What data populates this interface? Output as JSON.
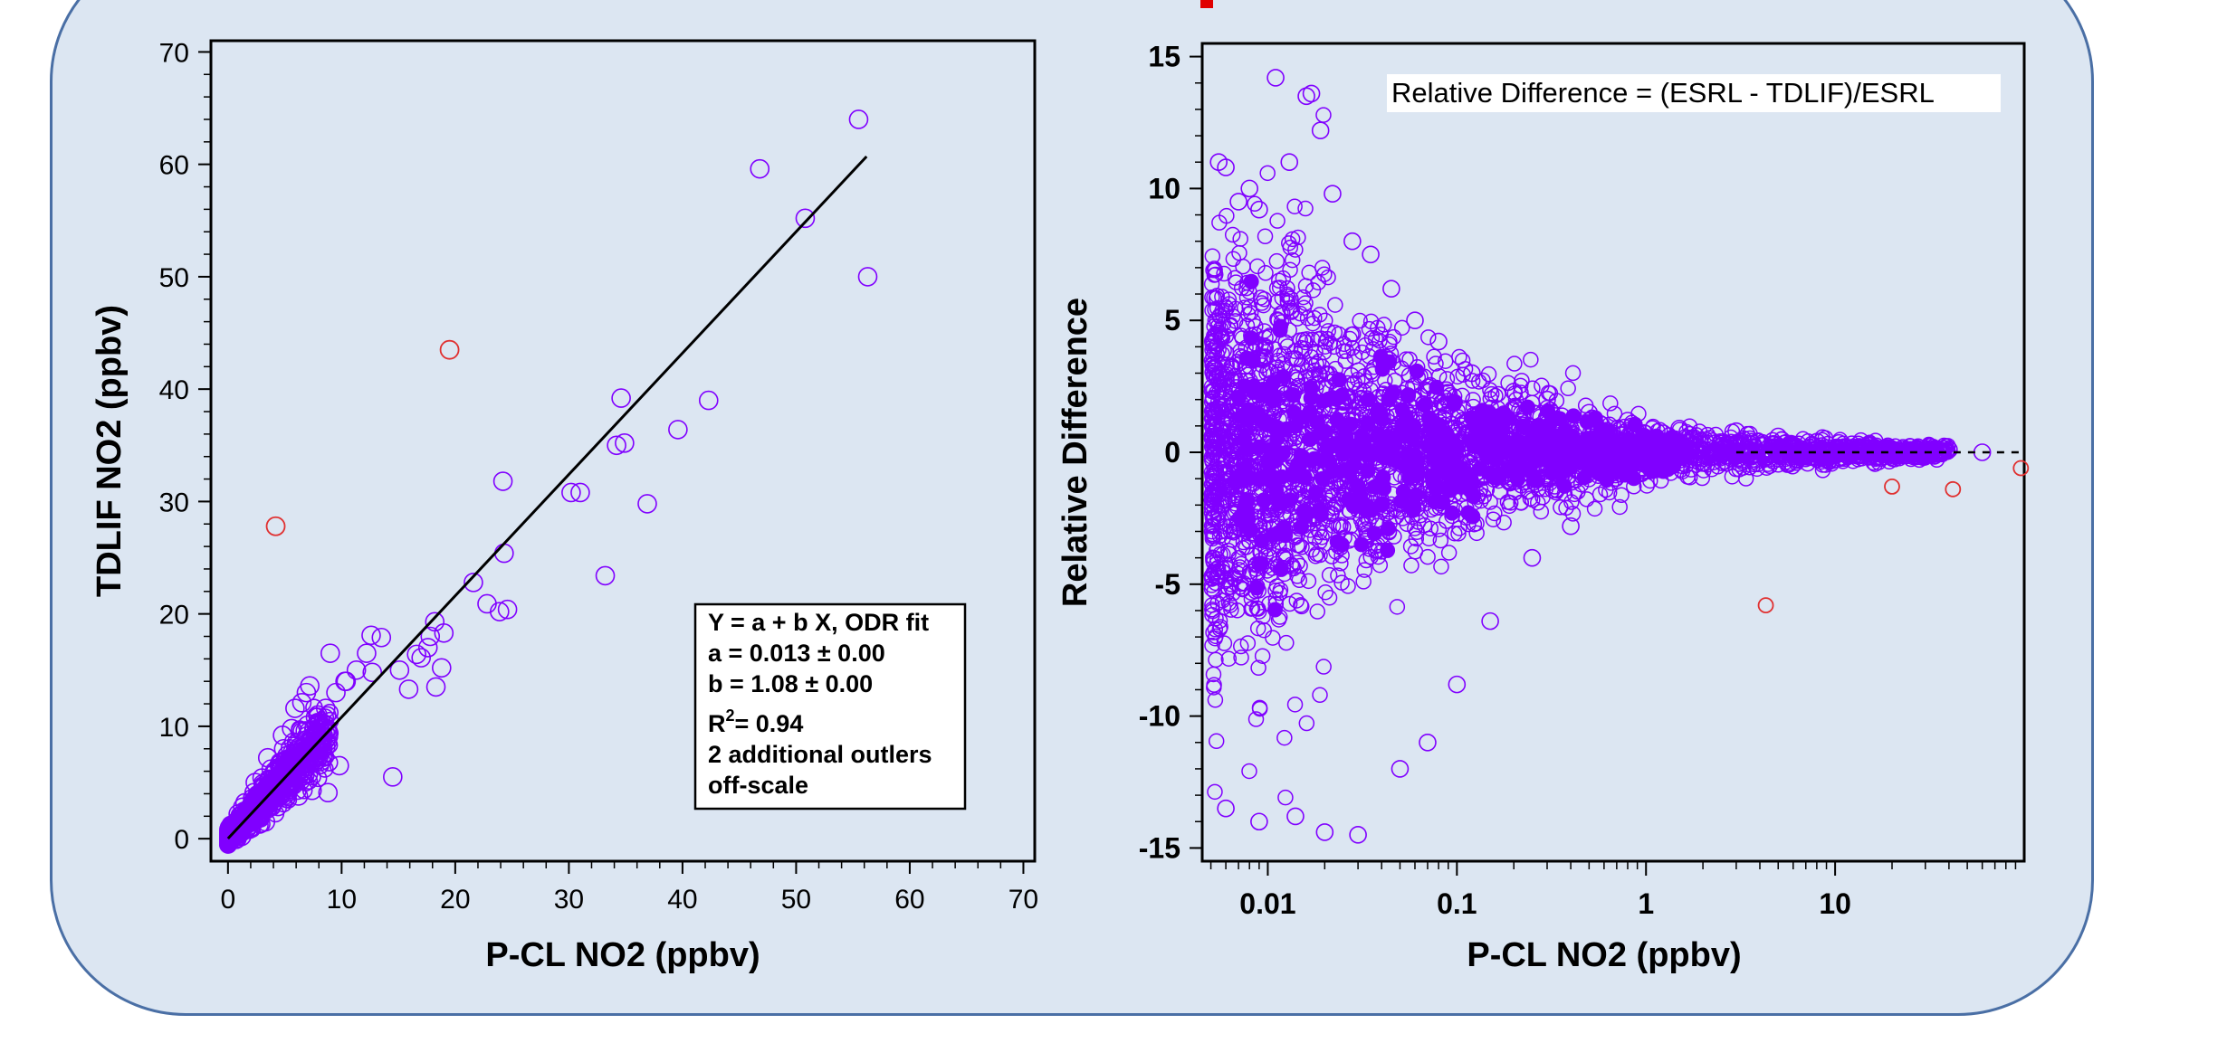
{
  "colors": {
    "panel_bg": "#dce6f2",
    "panel_border": "#4a6fa5",
    "marker": "#8000ff",
    "outlier": "#e03030",
    "fit_line": "#000000"
  },
  "chart_data": [
    {
      "type": "scatter",
      "xlabel": "P-CL NO2  (ppbv)",
      "ylabel": "TDLIF NO2  (ppbv)",
      "xlim": [
        -1.5,
        71
      ],
      "ylim": [
        -2,
        71
      ],
      "xticks": [
        0,
        10,
        20,
        30,
        40,
        50,
        60,
        70
      ],
      "yticks": [
        0,
        10,
        20,
        30,
        40,
        50,
        60,
        70
      ],
      "xtick_labels": [
        "0",
        "10",
        "20",
        "30",
        "40",
        "50",
        "60",
        "70"
      ],
      "ytick_labels": [
        "0",
        "10",
        "20",
        "30",
        "40",
        "50",
        "60",
        "70"
      ],
      "fit_line": {
        "x": [
          0,
          56.2
        ],
        "y": [
          0.013,
          60.7
        ]
      },
      "annotation": {
        "lines": [
          "Y = a + b X, ODR fit",
          "a = 0.013 ± 0.00",
          "b = 1.08 ± 0.00",
          "R",
          "=  0.94",
          "2 additional outlers",
          "off-scale"
        ],
        "r2_prefix": "R",
        "r2_sup": "2",
        "r2_rest": "=  0.94"
      },
      "outliers": [
        [
          4.2,
          27.8
        ],
        [
          19.5,
          43.5
        ]
      ],
      "series": [
        {
          "x": [
            55.5,
            46.8,
            50.8,
            56.3,
            34.6,
            42.3,
            39.6,
            24.2,
            36.9,
            30.2,
            31.0,
            34.2,
            34.9,
            33.2,
            24.3,
            21.6,
            23.9,
            24.6,
            22.8,
            19.0,
            17.8,
            18.2,
            17.6,
            18.8,
            18.3,
            16.6,
            17.0,
            15.9,
            15.1,
            14.5,
            13.5,
            12.6,
            12.2,
            11.3,
            10.3,
            9.5,
            8.6,
            7.9,
            7.0,
            6.4,
            5.8,
            5.2,
            4.6,
            4.1,
            3.6,
            3.1,
            2.6,
            2.2,
            1.8,
            1.4,
            1.0,
            0.7,
            0.4,
            0.2,
            9.0,
            10.4,
            12.7,
            8.8,
            6.2,
            5.1,
            4.4,
            3.3,
            2.0,
            1.2,
            0.5,
            0.1,
            8.2,
            7.4,
            6.8,
            5.5,
            3.9,
            2.9,
            1.6,
            0.8,
            0.3,
            9.8,
            8.1,
            6.5,
            5.9,
            4.8,
            3.5,
            2.4,
            1.3,
            0.6,
            7.7,
            6.0,
            4.3,
            2.8,
            1.9,
            1.1,
            0.2,
            0.9,
            1.5,
            2.3,
            3.0,
            3.8,
            4.9,
            5.6,
            6.9,
            7.2
          ],
          "y": [
            64.0,
            59.6,
            55.2,
            50.0,
            39.2,
            39.0,
            36.4,
            31.8,
            29.8,
            30.8,
            30.8,
            35.0,
            35.2,
            23.4,
            25.4,
            22.8,
            20.2,
            20.4,
            20.9,
            18.3,
            18.0,
            19.3,
            17.0,
            15.2,
            13.5,
            16.4,
            16.1,
            13.3,
            15.0,
            5.5,
            17.9,
            18.1,
            16.5,
            15.0,
            14.0,
            13.0,
            11.6,
            11.0,
            10.1,
            9.6,
            8.6,
            7.4,
            6.8,
            6.0,
            5.3,
            4.5,
            3.9,
            3.1,
            2.6,
            2.0,
            1.4,
            0.9,
            0.5,
            0.2,
            16.5,
            14.0,
            14.8,
            4.1,
            3.8,
            3.6,
            4.2,
            1.5,
            1.0,
            0.2,
            0.1,
            0.0,
            6.9,
            4.3,
            9.6,
            5.8,
            3.0,
            2.1,
            0.8,
            0.5,
            0.2,
            6.5,
            8.8,
            12.1,
            11.6,
            9.2,
            7.2,
            5.0,
            2.8,
            1.3,
            10.8,
            7.2,
            4.0,
            1.9,
            1.2,
            0.6,
            0.9,
            2.2,
            3.2,
            4.1,
            5.4,
            6.2,
            8.0,
            9.8,
            13.0,
            13.6
          ]
        }
      ]
    },
    {
      "type": "scatter",
      "xlabel": "P-CL NO2  (ppbv)",
      "ylabel": "Relative Difference",
      "xscale": "log",
      "xlim": [
        0.0045,
        100
      ],
      "ylim": [
        -15.5,
        15.5
      ],
      "xticks": [
        0.01,
        0.1,
        1,
        10
      ],
      "yticks": [
        -15,
        -10,
        -5,
        0,
        5,
        10,
        15
      ],
      "xtick_labels": [
        "0.01",
        "0.1",
        "1",
        "10"
      ],
      "ytick_labels": [
        "-15",
        "-10",
        "-5",
        "0",
        "5",
        "10",
        "15"
      ],
      "annotation": {
        "text": "Relative Difference = (ESRL - TDLIF)/ESRL"
      },
      "reference_line": {
        "y": 0,
        "style": "dashed"
      },
      "outliers": [
        [
          20.0,
          -1.3
        ],
        [
          42.0,
          -1.4
        ],
        [
          96.0,
          -0.6
        ],
        [
          4.3,
          -5.8
        ]
      ],
      "series": [
        {
          "description_points": "dense cloud around zero narrowing with x",
          "x": [
            0.011,
            0.016,
            0.017,
            0.019,
            0.0055,
            0.006,
            0.007,
            0.008,
            0.009,
            0.013,
            0.022,
            0.028,
            0.035,
            0.045,
            0.06,
            0.08,
            0.12,
            0.2,
            0.3,
            0.5,
            0.8,
            1.5,
            3,
            5,
            8,
            15,
            25,
            40,
            60,
            0.006,
            0.009,
            0.014,
            0.02,
            0.03,
            0.05,
            0.07,
            0.1,
            0.15,
            0.25,
            0.4
          ],
          "y": [
            14.2,
            13.5,
            13.6,
            12.2,
            11.0,
            10.8,
            9.5,
            10.0,
            9.2,
            11.0,
            9.8,
            8.0,
            7.5,
            6.2,
            5.0,
            4.2,
            3.0,
            2.3,
            2.0,
            1.5,
            1.2,
            0.9,
            0.8,
            0.6,
            0.4,
            0.3,
            0.2,
            0.1,
            0.0,
            -13.5,
            -14.0,
            -13.8,
            -14.4,
            -14.5,
            -12.0,
            -11.0,
            -8.8,
            -6.4,
            -4.0,
            -2.8
          ]
        }
      ]
    }
  ]
}
